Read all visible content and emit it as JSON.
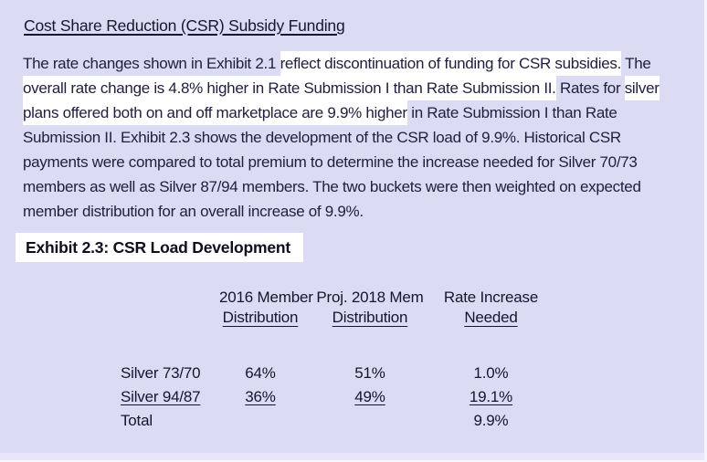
{
  "page": {
    "background": "#dcdbf4",
    "highlight_color": "#ffffff",
    "text_color": "#20203f"
  },
  "title": "Cost Share Reduction (CSR) Subsidy Funding",
  "paragraph": {
    "lines": [
      {
        "segments": [
          {
            "t": "The rate changes shown in Exhibit 2.1 ",
            "hl": false
          },
          {
            "t": "reflect discontinuation of funding for CSR subsidies.",
            "hl": true
          },
          {
            "t": " The",
            "hl": false
          }
        ]
      },
      {
        "segments": [
          {
            "t": "overall rate change is 4.8% higher in Rate Submission I than Rate Submission II.",
            "hl": true
          },
          {
            "t": " Rates for ",
            "hl": false
          },
          {
            "t": "silver",
            "hl": true
          }
        ]
      },
      {
        "segments": [
          {
            "t": "plans offered both on and off marketplace are 9.9% higher",
            "hl": true
          },
          {
            "t": " in Rate Submission I than Rate",
            "hl": false
          }
        ]
      },
      {
        "segments": [
          {
            "t": "Submission II. Exhibit 2.3 shows the development of the CSR load of 9.9%. Historical CSR",
            "hl": false
          }
        ]
      },
      {
        "segments": [
          {
            "t": "payments were compared to total premium to determine the increase needed for Silver 70/73",
            "hl": false
          }
        ]
      },
      {
        "segments": [
          {
            "t": "members as well as Silver 87/94 members. The two buckets were then weighted on expected",
            "hl": false
          }
        ]
      },
      {
        "segments": [
          {
            "t": "member distribution for an overall increase of 9.9%.",
            "hl": false
          }
        ]
      }
    ]
  },
  "exhibit_heading": "Exhibit 2.3: CSR Load Development",
  "table": {
    "header": [
      {
        "line1": "2016 Member",
        "line2": "Distribution"
      },
      {
        "line1": "Proj. 2018 Mem",
        "line2": "Distribution"
      },
      {
        "line1": "Rate Increase",
        "line2": "Needed"
      }
    ],
    "rows": [
      {
        "cells": [
          "Silver 73/70",
          "64%",
          "51%",
          "1.0%"
        ],
        "underline": false
      },
      {
        "cells": [
          "Silver 94/87",
          "36%",
          "49%",
          "19.1%"
        ],
        "underline": true
      },
      {
        "cells": [
          "Total",
          "",
          "",
          "9.9%"
        ],
        "underline": false
      }
    ]
  }
}
